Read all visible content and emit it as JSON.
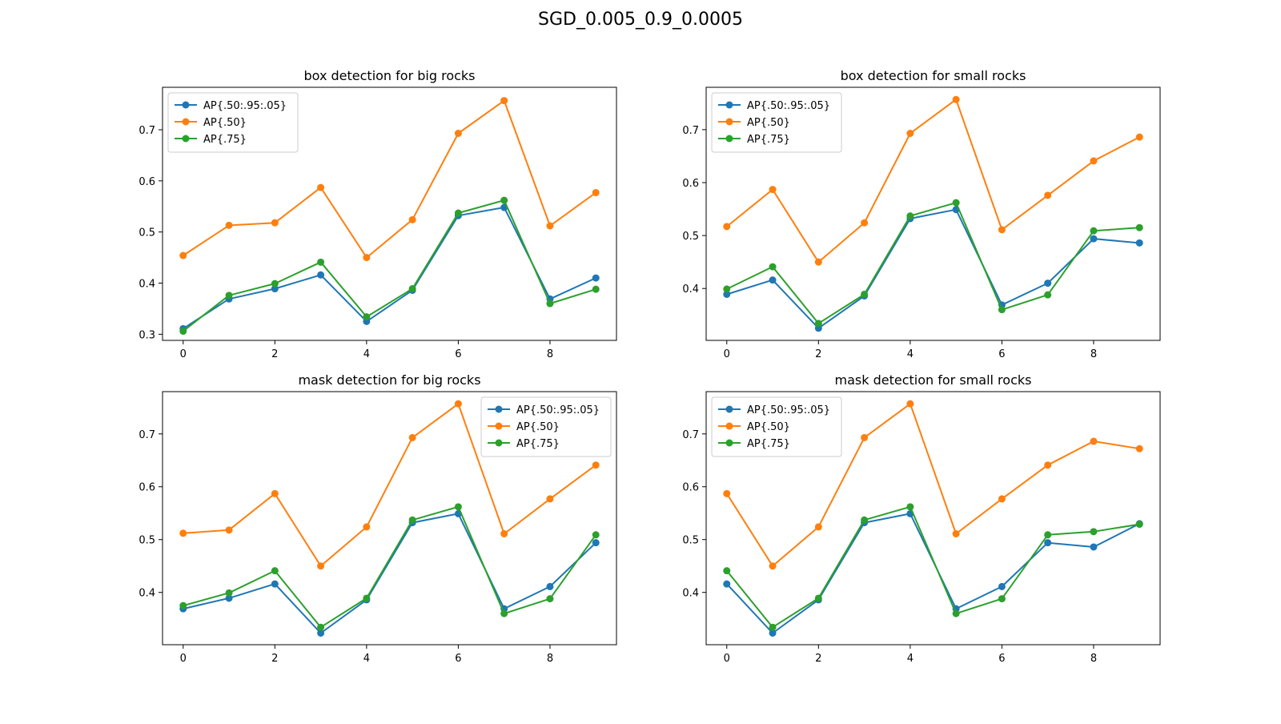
{
  "figure": {
    "suptitle": "SGD_0.005_0.9_0.0005"
  },
  "colors": {
    "ap_50_95": "#1f77b4",
    "ap_50": "#ff7f0e",
    "ap_75": "#2ca02c"
  },
  "chart_data": [
    {
      "type": "line",
      "title": "box detection for big rocks",
      "xlabel": "",
      "ylabel": "",
      "x": [
        0,
        1,
        2,
        3,
        4,
        5,
        6,
        7,
        8,
        9
      ],
      "xticks": [
        0,
        2,
        4,
        6,
        8
      ],
      "yticks": [
        0.3,
        0.4,
        0.5,
        0.6,
        0.7
      ],
      "xlim": [
        -0.45,
        9.45
      ],
      "ylim": [
        0.288,
        0.783
      ],
      "legend": "upper left",
      "grid": false,
      "series": [
        {
          "name": "AP{.50:.95:.05}",
          "color": "#1f77b4",
          "values": [
            0.311,
            0.369,
            0.389,
            0.416,
            0.325,
            0.386,
            0.532,
            0.548,
            0.369,
            0.41
          ]
        },
        {
          "name": "AP{.50}",
          "color": "#ff7f0e",
          "values": [
            0.454,
            0.513,
            0.518,
            0.587,
            0.45,
            0.524,
            0.693,
            0.757,
            0.512,
            0.577
          ]
        },
        {
          "name": "AP{.75}",
          "color": "#2ca02c",
          "values": [
            0.306,
            0.376,
            0.399,
            0.441,
            0.334,
            0.389,
            0.537,
            0.562,
            0.36,
            0.388
          ]
        }
      ]
    },
    {
      "type": "line",
      "title": "box detection for small rocks",
      "xlabel": "",
      "ylabel": "",
      "x": [
        0,
        1,
        2,
        3,
        4,
        5,
        6,
        7,
        8,
        9
      ],
      "xticks": [
        0,
        2,
        4,
        6,
        8
      ],
      "yticks": [
        0.4,
        0.5,
        0.6,
        0.7
      ],
      "xlim": [
        -0.45,
        9.45
      ],
      "ylim": [
        0.302,
        0.78
      ],
      "legend": "upper left",
      "grid": false,
      "series": [
        {
          "name": "AP{.50:.95:.05}",
          "color": "#1f77b4",
          "values": [
            0.389,
            0.416,
            0.325,
            0.386,
            0.532,
            0.549,
            0.369,
            0.41,
            0.494,
            0.486
          ]
        },
        {
          "name": "AP{.50}",
          "color": "#ff7f0e",
          "values": [
            0.517,
            0.587,
            0.45,
            0.524,
            0.693,
            0.757,
            0.511,
            0.576,
            0.641,
            0.686
          ]
        },
        {
          "name": "AP{.75}",
          "color": "#2ca02c",
          "values": [
            0.399,
            0.441,
            0.334,
            0.389,
            0.537,
            0.562,
            0.36,
            0.388,
            0.509,
            0.515
          ]
        }
      ]
    },
    {
      "type": "line",
      "title": "mask detection for big rocks",
      "xlabel": "",
      "ylabel": "",
      "x": [
        0,
        1,
        2,
        3,
        4,
        5,
        6,
        7,
        8,
        9
      ],
      "xticks": [
        0,
        2,
        4,
        6,
        8
      ],
      "yticks": [
        0.4,
        0.5,
        0.6,
        0.7
      ],
      "xlim": [
        -0.45,
        9.45
      ],
      "ylim": [
        0.301,
        0.78
      ],
      "legend": "upper right",
      "grid": false,
      "series": [
        {
          "name": "AP{.50:.95:.05}",
          "color": "#1f77b4",
          "values": [
            0.369,
            0.389,
            0.416,
            0.323,
            0.386,
            0.532,
            0.549,
            0.369,
            0.411,
            0.494
          ]
        },
        {
          "name": "AP{.50}",
          "color": "#ff7f0e",
          "values": [
            0.512,
            0.518,
            0.587,
            0.45,
            0.524,
            0.693,
            0.757,
            0.511,
            0.577,
            0.641
          ]
        },
        {
          "name": "AP{.75}",
          "color": "#2ca02c",
          "values": [
            0.375,
            0.399,
            0.441,
            0.334,
            0.389,
            0.537,
            0.562,
            0.36,
            0.388,
            0.509
          ]
        }
      ]
    },
    {
      "type": "line",
      "title": "mask detection for small rocks",
      "xlabel": "",
      "ylabel": "",
      "x": [
        0,
        1,
        2,
        3,
        4,
        5,
        6,
        7,
        8,
        9
      ],
      "xticks": [
        0,
        2,
        4,
        6,
        8
      ],
      "yticks": [
        0.4,
        0.5,
        0.6,
        0.7
      ],
      "xlim": [
        -0.45,
        9.45
      ],
      "ylim": [
        0.301,
        0.78
      ],
      "legend": "upper left",
      "grid": false,
      "series": [
        {
          "name": "AP{.50:.95:.05}",
          "color": "#1f77b4",
          "values": [
            0.416,
            0.323,
            0.386,
            0.532,
            0.549,
            0.369,
            0.411,
            0.494,
            0.486,
            0.53
          ]
        },
        {
          "name": "AP{.50}",
          "color": "#ff7f0e",
          "values": [
            0.587,
            0.45,
            0.524,
            0.693,
            0.757,
            0.511,
            0.577,
            0.641,
            0.686,
            0.672
          ]
        },
        {
          "name": "AP{.75}",
          "color": "#2ca02c",
          "values": [
            0.441,
            0.334,
            0.389,
            0.537,
            0.562,
            0.36,
            0.388,
            0.509,
            0.515,
            0.529
          ]
        }
      ]
    }
  ]
}
